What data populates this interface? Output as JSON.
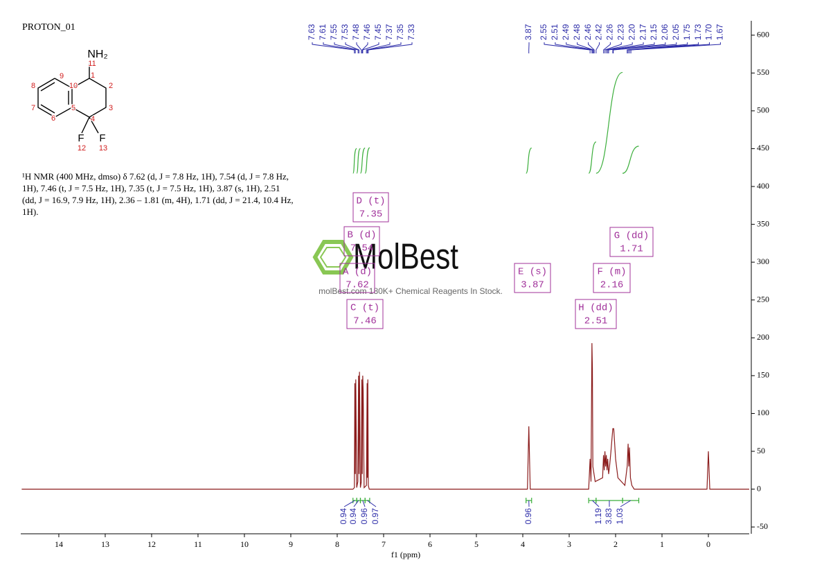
{
  "chart_data": {
    "type": "line",
    "title": "PROTON_01",
    "x_label": "f1 (ppm)",
    "xlim": [
      14.82,
      -0.88
    ],
    "xticks": [
      14,
      13,
      12,
      11,
      10,
      9,
      8,
      7,
      6,
      5,
      4,
      3,
      2,
      1,
      0
    ],
    "ylim": [
      -59,
      619
    ],
    "yticks": [
      -50,
      0,
      50,
      100,
      150,
      200,
      250,
      300,
      350,
      400,
      450,
      500,
      550,
      600
    ],
    "color": "#8b1c1c",
    "x": [
      14.8,
      7.66,
      7.63,
      7.62,
      7.61,
      7.6,
      7.58,
      7.555,
      7.54,
      7.53,
      7.52,
      7.5,
      7.48,
      7.47,
      7.46,
      7.45,
      7.44,
      7.42,
      7.37,
      7.355,
      7.35,
      7.34,
      7.33,
      7.31,
      3.9,
      3.87,
      3.84,
      2.58,
      2.55,
      2.53,
      2.51,
      2.5,
      2.49,
      2.44,
      2.28,
      2.26,
      2.245,
      2.23,
      2.215,
      2.2,
      2.185,
      2.17,
      2.15,
      2.13,
      2.1,
      2.06,
      2.04,
      2.0,
      1.95,
      1.8,
      1.75,
      1.73,
      1.715,
      1.7,
      1.68,
      1.65,
      1.6,
      0.03,
      0.0,
      -0.03,
      -0.88
    ],
    "values": [
      0,
      0,
      2,
      140,
      20,
      145,
      2,
      10,
      150,
      20,
      155,
      2,
      10,
      145,
      20,
      150,
      130,
      2,
      5,
      140,
      15,
      145,
      5,
      0,
      0,
      83,
      0,
      0,
      40,
      10,
      193,
      160,
      30,
      10,
      15,
      45,
      25,
      50,
      30,
      45,
      25,
      40,
      20,
      30,
      50,
      80,
      80,
      40,
      15,
      5,
      30,
      60,
      30,
      55,
      15,
      5,
      0,
      0,
      50,
      0,
      0
    ],
    "peak_labels": [
      {
        "value": 7.63,
        "label": "7.63"
      },
      {
        "value": 7.61,
        "label": "7.61"
      },
      {
        "value": 7.55,
        "label": "7.55"
      },
      {
        "value": 7.53,
        "label": "7.53"
      },
      {
        "value": 7.48,
        "label": "7.48"
      },
      {
        "value": 7.46,
        "label": "7.46"
      },
      {
        "value": 7.45,
        "label": "7.45"
      },
      {
        "value": 7.37,
        "label": "7.37"
      },
      {
        "value": 7.35,
        "label": "7.35"
      },
      {
        "value": 7.33,
        "label": "7.33"
      },
      {
        "value": 3.87,
        "label": "3.87"
      },
      {
        "value": 2.55,
        "label": "2.55"
      },
      {
        "value": 2.51,
        "label": "2.51"
      },
      {
        "value": 2.49,
        "label": "2.49"
      },
      {
        "value": 2.48,
        "label": "2.48"
      },
      {
        "value": 2.46,
        "label": "2.46"
      },
      {
        "value": 2.42,
        "label": "2.42"
      },
      {
        "value": 2.26,
        "label": "2.26"
      },
      {
        "value": 2.23,
        "label": "2.23"
      },
      {
        "value": 2.2,
        "label": "2.20"
      },
      {
        "value": 2.17,
        "label": "2.17"
      },
      {
        "value": 2.15,
        "label": "2.15"
      },
      {
        "value": 2.06,
        "label": "2.06"
      },
      {
        "value": 2.05,
        "label": "2.05"
      },
      {
        "value": 1.75,
        "label": "1.75"
      },
      {
        "value": 1.73,
        "label": "1.73"
      },
      {
        "value": 1.7,
        "label": "1.70"
      },
      {
        "value": 1.67,
        "label": "1.67"
      }
    ],
    "integrals": [
      {
        "value": 0.94,
        "range": [
          7.66,
          7.58
        ]
      },
      {
        "value": 0.94,
        "range": [
          7.58,
          7.5
        ]
      },
      {
        "value": 0.96,
        "range": [
          7.5,
          7.4
        ]
      },
      {
        "value": 0.97,
        "range": [
          7.4,
          7.3
        ]
      },
      {
        "value": 0.96,
        "range": [
          3.93,
          3.81
        ]
      },
      {
        "value": 1.19,
        "range": [
          2.58,
          2.42
        ]
      },
      {
        "value": 3.83,
        "range": [
          2.42,
          1.85
        ]
      },
      {
        "value": 1.03,
        "range": [
          1.85,
          1.5
        ]
      }
    ],
    "multiplets": [
      {
        "label": "A (d)",
        "shift": 7.62
      },
      {
        "label": "B (d)",
        "shift": 7.54
      },
      {
        "label": "C (t)",
        "shift": 7.46
      },
      {
        "label": "D (t)",
        "shift": 7.35
      },
      {
        "label": "E (s)",
        "shift": 3.87
      },
      {
        "label": "F (m)",
        "shift": 2.16
      },
      {
        "label": "G (dd)",
        "shift": 1.71
      },
      {
        "label": "H (dd)",
        "shift": 2.51
      }
    ],
    "molecule": {
      "atoms": [
        "NH₂",
        "F",
        "F"
      ],
      "numbers": [
        1,
        2,
        3,
        4,
        5,
        6,
        7,
        8,
        9,
        10,
        11,
        12,
        13
      ]
    },
    "description": "¹H NMR (400 MHz, dmso) δ 7.62 (d, J = 7.8 Hz, 1H), 7.54 (d, J = 7.8 Hz, 1H), 7.46 (t, J = 7.5 Hz, 1H), 7.35 (t, J = 7.5 Hz, 1H), 3.87 (s, 1H), 2.51 (dd, J = 16.9, 7.9 Hz, 1H), 2.36 – 1.81 (m, 4H), 1.71 (dd, J = 21.4, 10.4 Hz, 1H).",
    "watermark": {
      "brand": "MolBest",
      "tagline": "molBest.com 180K+ Chemical Reagents In Stock."
    }
  }
}
